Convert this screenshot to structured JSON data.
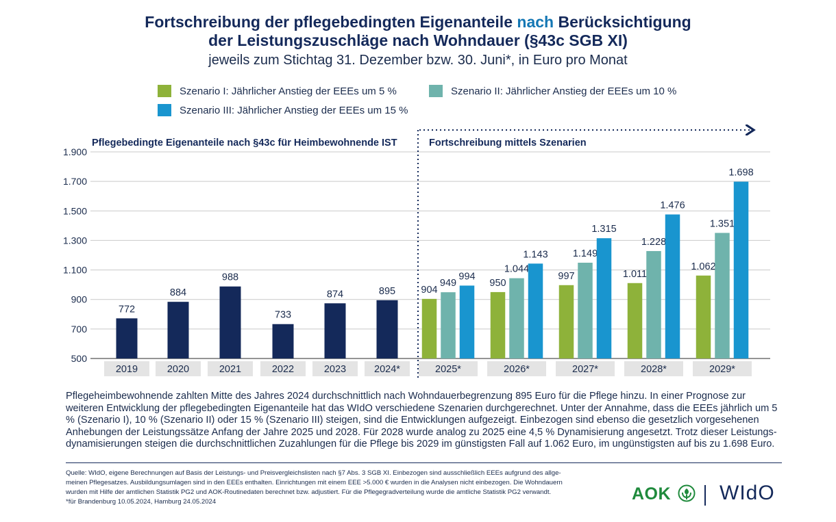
{
  "header": {
    "title_line1_part1": "Fortschreibung der pflegebedingten Eigenanteile ",
    "title_line1_accent": "nach",
    "title_line1_part2": " Berücksichtigung",
    "title_line2": "der Leistungszuschläge nach Wohndauer (§43c SGB XI)",
    "subtitle": "jeweils zum Stichtag 31. Dezember bzw. 30. Juni*, in Euro pro Monat"
  },
  "legend": [
    {
      "label": "Szenario I: Jährlicher Anstieg der EEEs um 5 %",
      "color": "#8eb23a"
    },
    {
      "label": "Szenario II:  Jährlicher Anstieg der EEEs um 10 %",
      "color": "#6fb3ac"
    },
    {
      "label": "Szenario III:  Jährlicher Anstieg der EEEs um 15 %",
      "color": "#1995cf"
    }
  ],
  "colors": {
    "ist": "#14295a",
    "s1": "#8eb23a",
    "s2": "#6fb3ac",
    "s3": "#1995cf",
    "label_bg": "#e4e4e4"
  },
  "chart_data": {
    "type": "bar",
    "section_labels": {
      "ist": "Pflegebedingte Eigenanteile nach §43c für Heimbewohnende IST",
      "forecast": "Fortschreibung mittels Szenarien"
    },
    "ylim": [
      500,
      1900
    ],
    "yticks": [
      500,
      700,
      900,
      1100,
      1300,
      1500,
      1700,
      1900
    ],
    "ytick_labels": [
      "500",
      "700",
      "900",
      "1.100",
      "1.300",
      "1.500",
      "1.700",
      "1.900"
    ],
    "ist": {
      "categories": [
        "2019",
        "2020",
        "2021",
        "2022",
        "2023",
        "2024*"
      ],
      "values": [
        772,
        884,
        988,
        733,
        874,
        895
      ],
      "value_labels": [
        "772",
        "884",
        "988",
        "733",
        "874",
        "895"
      ]
    },
    "forecast": {
      "categories": [
        "2025*",
        "2026*",
        "2027*",
        "2028*",
        "2029*"
      ],
      "series": [
        {
          "name": "Szenario I",
          "values": [
            904,
            950,
            997,
            1011,
            1062
          ],
          "value_labels": [
            "904",
            "950",
            "997",
            "1.011",
            "1.062"
          ]
        },
        {
          "name": "Szenario II",
          "values": [
            949,
            1044,
            1149,
            1228,
            1351
          ],
          "value_labels": [
            "949",
            "1.044",
            "1.149",
            "1.228",
            "1.351"
          ]
        },
        {
          "name": "Szenario III",
          "values": [
            994,
            1143,
            1315,
            1476,
            1698
          ],
          "value_labels": [
            "994",
            "1.143",
            "1.315",
            "1.476",
            "1.698"
          ]
        }
      ]
    }
  },
  "description": "Pflegeheimbewohnende zahlten Mitte des Jahres 2024 durchschnittlich nach Wohndauerbegrenzung 895 Euro für die Pflege hinzu. In einer Prognose zur weiteren Entwicklung der pflegebedingten Eigenanteile hat das WIdO verschiedene Szenarien durchgerechnet. Unter der Annahme, dass die EEEs jährlich um 5 % (Szenario I), 10 % (Szenario II) oder 15 % (Szenario III) steigen, sind die Entwicklungen aufgezeigt. Einbezogen sind ebenso die gesetzlich vorgesehenen Anhebungen der Leistungssätze Anfang der Jahre 2025 und 2028. Für 2028 wurde analog zu 2025 eine 4,5 % Dynamisierung angesetzt. Trotz dieser Leistungs-dynamisierungen steigen die durchschnittlichen Zuzahlungen für die Pflege bis 2029 im günstigsten Fall auf 1.062 Euro, im ungünstigsten auf bis zu 1.698 Euro.",
  "source": {
    "line1": "Quelle: WIdO, eigene Berechnungen auf Basis der Leistungs- und Preisvergleichslisten nach §7 Abs. 3 SGB XI. Einbezogen sind ausschließlich EEEs aufgrund des allge-",
    "line2": "meinen Pflegesatzes. Ausbildungsumlagen sind in den EEEs enthalten. Einrichtungen mit einem EEE >5.000 € wurden in die Analysen nicht einbezogen. Die Wohndauern",
    "line3": "wurden mit Hilfe der amtlichen Statistik PG2 und AOK-Routinedaten berechnet bzw. adjustiert. Für die Pflegegradverteilung wurde die amtliche Statistik PG2 verwandt.",
    "line4": "*für Brandenburg 10.05.2024, Hamburg 24.05.2024"
  },
  "logos": {
    "aok": "AOK",
    "wido": "WIdO"
  }
}
